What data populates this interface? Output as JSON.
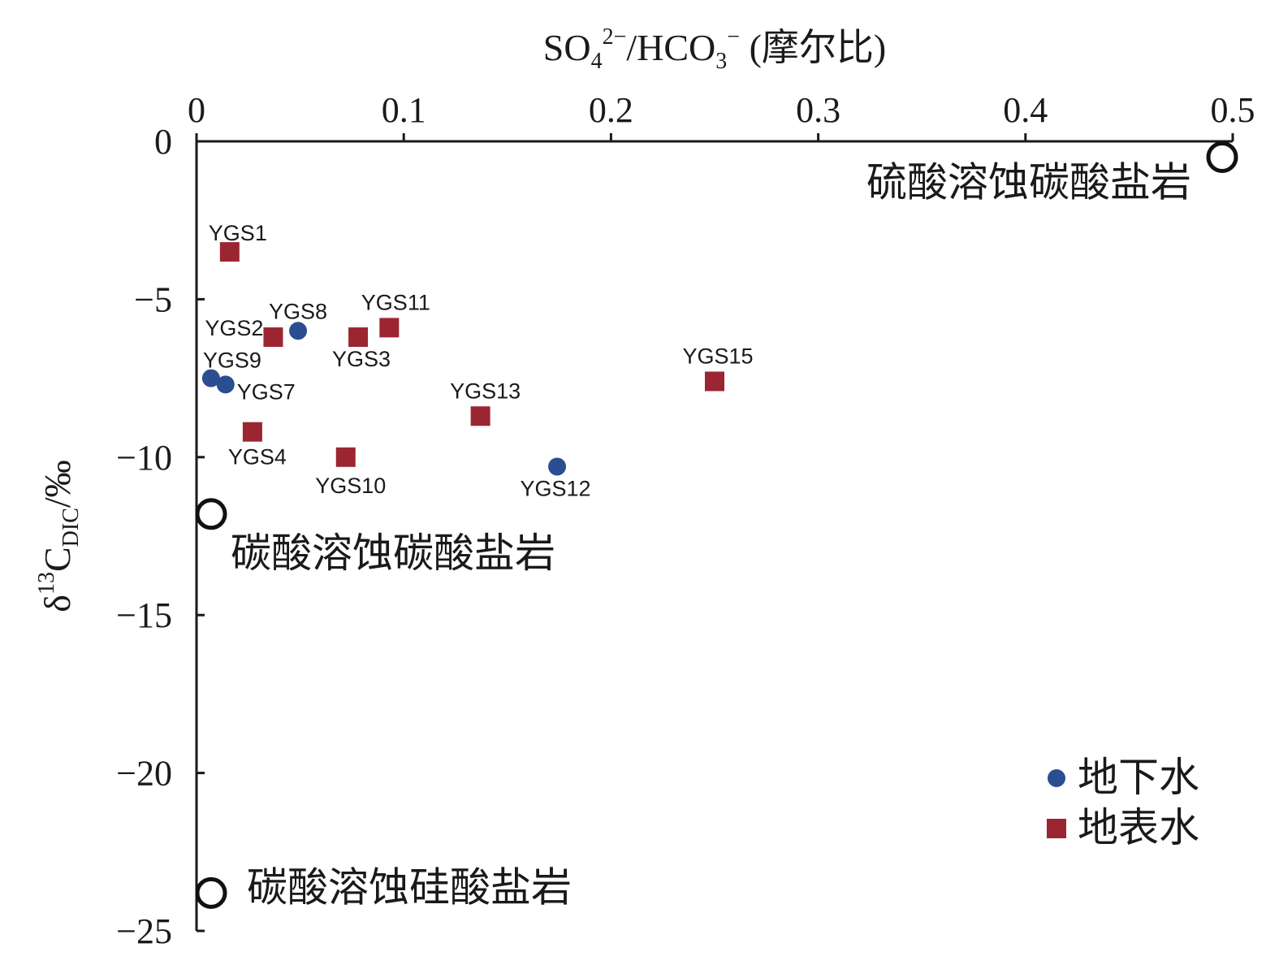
{
  "chart_data": {
    "type": "scatter",
    "title": "",
    "xlabel": {
      "main": "SO",
      "sub": "4",
      "sup": "2−",
      "rest": "/HCO",
      "sub2": "3",
      "sup2": "−",
      "tail": " (摩尔比)"
    },
    "ylabel": {
      "main": "δ",
      "sup": "13",
      "mid": "C",
      "sub": "DIC",
      "tail": "/‰"
    },
    "xlim": [
      0,
      0.5
    ],
    "ylim": [
      -25,
      0
    ],
    "x_axis_position": "top",
    "x_ticks": [
      0,
      0.1,
      0.2,
      0.3,
      0.4,
      0.5
    ],
    "x_tick_labels": [
      "0",
      "0.1",
      "0.2",
      "0.3",
      "0.4",
      "0.5"
    ],
    "y_ticks": [
      0,
      -5,
      -10,
      -15,
      -20,
      -25
    ],
    "y_tick_labels": [
      "0",
      "−5",
      "−10",
      "−15",
      "−20",
      "−25"
    ],
    "grid": false,
    "legend_position": "bottom-right",
    "series": [
      {
        "name": "地下水",
        "marker": "circle",
        "color": "#2b4d91",
        "points": [
          {
            "label": "YGS8",
            "x": 0.049,
            "y": -6.0
          },
          {
            "label": "YGS9",
            "x": 0.007,
            "y": -7.5
          },
          {
            "label": "YGS7",
            "x": 0.014,
            "y": -7.7
          },
          {
            "label": "YGS12",
            "x": 0.174,
            "y": -10.3
          }
        ]
      },
      {
        "name": "地表水",
        "marker": "square",
        "color": "#9b2631",
        "points": [
          {
            "label": "YGS1",
            "x": 0.016,
            "y": -3.5
          },
          {
            "label": "YGS2",
            "x": 0.037,
            "y": -6.2
          },
          {
            "label": "YGS3",
            "x": 0.078,
            "y": -6.2
          },
          {
            "label": "YGS11",
            "x": 0.093,
            "y": -5.9
          },
          {
            "label": "YGS15",
            "x": 0.25,
            "y": -7.6
          },
          {
            "label": "YGS13",
            "x": 0.137,
            "y": -8.7
          },
          {
            "label": "YGS4",
            "x": 0.027,
            "y": -9.2
          },
          {
            "label": "YGS10",
            "x": 0.072,
            "y": -10.0
          }
        ]
      }
    ],
    "end_members": [
      {
        "label": "硫酸溶蚀碳酸盐岩",
        "x": 0.5,
        "y": -0.5,
        "marker": "open-circle"
      },
      {
        "label": "碳酸溶蚀碳酸盐岩",
        "x": 0.0,
        "y": -11.8,
        "marker": "open-circle"
      },
      {
        "label": "碳酸溶蚀硅酸盐岩",
        "x": 0.0,
        "y": -23.8,
        "marker": "open-circle"
      }
    ]
  }
}
